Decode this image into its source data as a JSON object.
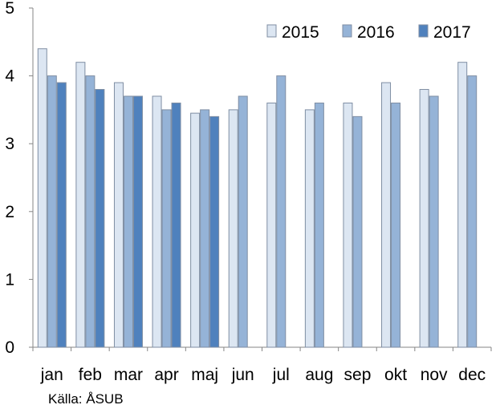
{
  "chart_data": {
    "type": "bar",
    "categories": [
      "jan",
      "feb",
      "mar",
      "apr",
      "maj",
      "jun",
      "jul",
      "aug",
      "sep",
      "okt",
      "nov",
      "dec"
    ],
    "series": [
      {
        "name": "2015",
        "color": "#dce6f2",
        "values": [
          4.4,
          4.2,
          3.9,
          3.7,
          3.45,
          3.5,
          3.6,
          3.5,
          3.6,
          3.9,
          3.8,
          4.2
        ]
      },
      {
        "name": "2016",
        "color": "#95b3d7",
        "values": [
          4.0,
          4.0,
          3.7,
          3.5,
          3.5,
          3.7,
          4.0,
          3.6,
          3.4,
          3.6,
          3.7,
          4.0
        ]
      },
      {
        "name": "2017",
        "color": "#4f81bd",
        "values": [
          3.9,
          3.8,
          3.7,
          3.6,
          3.4,
          null,
          null,
          null,
          null,
          null,
          null,
          null
        ]
      }
    ],
    "ylim": [
      0,
      5
    ],
    "yticks": [
      "0",
      "1",
      "2",
      "3",
      "4",
      "5"
    ],
    "grid": false,
    "legend_position": "top-right",
    "bar_outline_color": "#7f8ea3"
  },
  "source_text": "Källa: ÅSUB"
}
